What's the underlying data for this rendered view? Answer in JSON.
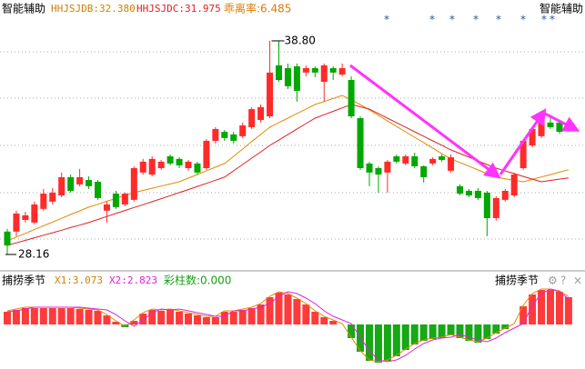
{
  "chart_data": [
    {
      "type": "candlestick",
      "title": "智能辅助",
      "title_right": "智能辅助",
      "legend": [
        "HHJSJDB:32.380",
        "HHJSJDC:31.975",
        "乖离率:6.485"
      ],
      "stars": [
        "*",
        "*",
        "*",
        "*",
        "*",
        "*",
        "*",
        "*"
      ],
      "high_mark": {
        "value": 38.8,
        "label": "38.80"
      },
      "low_mark": {
        "value": 28.16,
        "label": "28.16"
      },
      "up_color": "#ff2a2a",
      "down_color": "#00a800",
      "ylim": [
        27.48,
        39.93
      ],
      "ohlc": [
        [
          29.3,
          29.43,
          28.16,
          28.61
        ],
        [
          29.3,
          30.34,
          29.07,
          30.2
        ],
        [
          29.88,
          30.29,
          29.75,
          30.11
        ],
        [
          29.75,
          30.79,
          29.66,
          30.65
        ],
        [
          30.43,
          31.42,
          30.34,
          31.19
        ],
        [
          30.79,
          31.47,
          30.65,
          31.24
        ],
        [
          31.1,
          32.24,
          31.01,
          32.01
        ],
        [
          32.01,
          32.14,
          31.24,
          31.33
        ],
        [
          31.65,
          32.42,
          31.56,
          32.01
        ],
        [
          31.87,
          32.05,
          31.42,
          31.56
        ],
        [
          31.78,
          31.87,
          30.88,
          30.97
        ],
        [
          30.34,
          30.79,
          29.75,
          30.65
        ],
        [
          31.19,
          31.33,
          30.43,
          30.52
        ],
        [
          30.65,
          31.24,
          30.56,
          31.19
        ],
        [
          30.88,
          32.55,
          30.79,
          32.46
        ],
        [
          32.24,
          32.92,
          32.14,
          32.78
        ],
        [
          32.14,
          33.05,
          32.05,
          32.92
        ],
        [
          32.46,
          32.87,
          32.37,
          32.78
        ],
        [
          33.05,
          33.14,
          32.6,
          32.69
        ],
        [
          32.92,
          33.0,
          32.46,
          32.6
        ],
        [
          32.46,
          32.87,
          32.33,
          32.78
        ],
        [
          32.69,
          32.78,
          32.14,
          32.24
        ],
        [
          32.46,
          33.91,
          32.37,
          33.82
        ],
        [
          33.82,
          34.5,
          33.68,
          34.41
        ],
        [
          34.27,
          34.36,
          33.82,
          33.96
        ],
        [
          34.14,
          34.27,
          33.68,
          33.82
        ],
        [
          34.05,
          34.73,
          33.96,
          34.59
        ],
        [
          34.5,
          35.5,
          34.41,
          35.4
        ],
        [
          34.86,
          35.63,
          34.73,
          35.5
        ],
        [
          35.04,
          38.8,
          34.95,
          37.22
        ],
        [
          37.58,
          38.8,
          36.76,
          36.85
        ],
        [
          37.44,
          37.67,
          36.4,
          36.54
        ],
        [
          37.53,
          37.67,
          35.77,
          36.31
        ],
        [
          37.22,
          37.58,
          37.03,
          37.44
        ],
        [
          37.44,
          37.53,
          36.99,
          37.22
        ],
        [
          36.76,
          37.67,
          35.77,
          37.58
        ],
        [
          37.44,
          37.53,
          36.85,
          37.22
        ],
        [
          37.12,
          37.67,
          37.03,
          37.44
        ],
        [
          36.85,
          37.03,
          34.95,
          35.04
        ],
        [
          34.95,
          35.04,
          32.37,
          32.46
        ],
        [
          32.69,
          32.78,
          31.56,
          32.24
        ],
        [
          32.46,
          32.55,
          31.24,
          32.14
        ],
        [
          32.24,
          32.87,
          31.24,
          32.78
        ],
        [
          33.05,
          33.14,
          32.69,
          32.78
        ],
        [
          32.69,
          33.14,
          32.6,
          33.05
        ],
        [
          33.05,
          33.23,
          32.46,
          32.55
        ],
        [
          32.55,
          32.6,
          31.74,
          32.01
        ],
        [
          32.69,
          33.0,
          32.6,
          32.92
        ],
        [
          33.05,
          33.14,
          32.78,
          32.87
        ],
        [
          32.33,
          33.14,
          32.24,
          33.0
        ],
        [
          31.56,
          31.65,
          31.1,
          31.19
        ],
        [
          31.33,
          31.42,
          31.01,
          31.1
        ],
        [
          31.33,
          31.47,
          30.88,
          30.97
        ],
        [
          31.24,
          31.33,
          29.07,
          29.97
        ],
        [
          29.97,
          31.06,
          29.84,
          30.97
        ],
        [
          30.88,
          31.42,
          30.79,
          31.33
        ],
        [
          31.1,
          32.24,
          31.01,
          32.14
        ],
        [
          32.46,
          33.91,
          32.37,
          33.82
        ],
        [
          33.59,
          34.5,
          33.5,
          34.41
        ],
        [
          34.05,
          35.31,
          33.96,
          35.18
        ],
        [
          34.73,
          35.04,
          34.41,
          34.5
        ],
        [
          34.73,
          34.86,
          34.18,
          34.27
        ],
        [
          34.59,
          34.68,
          34.27,
          34.41
        ]
      ],
      "series": [
        {
          "name": "HHJSJDB",
          "color": "#e08a00",
          "values": [
            28.84,
            29.03,
            29.21,
            29.4,
            29.59,
            29.77,
            29.96,
            30.15,
            30.33,
            30.52,
            30.66,
            30.81,
            30.95,
            31.1,
            31.24,
            31.35,
            31.46,
            31.57,
            31.67,
            31.78,
            31.96,
            32.14,
            32.33,
            32.51,
            32.69,
            33.05,
            33.41,
            33.78,
            34.14,
            34.5,
            34.73,
            34.95,
            35.18,
            35.4,
            35.63,
            35.78,
            35.93,
            36.08,
            35.86,
            35.63,
            35.36,
            35.09,
            34.81,
            34.54,
            34.27,
            34.0,
            33.73,
            33.46,
            33.19,
            32.92,
            32.74,
            32.56,
            32.37,
            32.19,
            32.01,
            31.93,
            31.86,
            31.78,
            31.9,
            32.02,
            32.14,
            32.26,
            32.38
          ]
        },
        {
          "name": "HHJSJDC",
          "color": "#e02020",
          "values": [
            28.61,
            28.74,
            28.86,
            28.99,
            29.12,
            29.24,
            29.37,
            29.5,
            29.62,
            29.75,
            29.9,
            30.05,
            30.2,
            30.35,
            30.5,
            30.64,
            30.79,
            30.94,
            31.09,
            31.24,
            31.39,
            31.55,
            31.7,
            31.86,
            32.01,
            32.33,
            32.64,
            32.96,
            33.27,
            33.59,
            33.86,
            34.13,
            34.41,
            34.68,
            34.95,
            35.12,
            35.29,
            35.46,
            35.63,
            35.52,
            35.4,
            35.18,
            34.95,
            34.73,
            34.5,
            34.27,
            34.05,
            33.82,
            33.6,
            33.37,
            33.19,
            33.01,
            32.82,
            32.64,
            32.46,
            32.32,
            32.19,
            32.05,
            31.91,
            31.78,
            31.85,
            31.91,
            31.975
          ]
        }
      ]
    },
    {
      "type": "histogram-oscillator",
      "title": "捕捞季节",
      "title_right": "捕捞季节",
      "legend": [
        "X1:3.073",
        "X2:2.823",
        "彩柱数:0.000"
      ],
      "up_color": "#ff3a3a",
      "down_color": "#16a816",
      "ylim": [
        -4.7,
        5.7
      ],
      "values": [
        1.4,
        1.6,
        1.8,
        1.8,
        1.8,
        1.8,
        1.8,
        1.8,
        1.7,
        1.6,
        1.5,
        1.0,
        0.3,
        -0.3,
        0.4,
        1.2,
        1.6,
        1.5,
        1.6,
        1.4,
        1.2,
        1.0,
        0.8,
        0.8,
        1.4,
        1.4,
        1.6,
        1.8,
        2.2,
        3.0,
        3.5,
        3.3,
        2.8,
        2.2,
        1.4,
        0.8,
        0.4,
        0.0,
        -1.5,
        -3.0,
        -4.0,
        -4.2,
        -4.0,
        -3.5,
        -2.8,
        -2.2,
        -1.8,
        -1.6,
        -1.5,
        -1.2,
        -1.5,
        -1.8,
        -2.0,
        -1.6,
        -1.0,
        -0.5,
        0.0,
        2.0,
        3.3,
        3.8,
        3.8,
        3.6,
        3.0
      ],
      "series": [
        {
          "name": "X1",
          "color": "#e08a00",
          "values": [
            1.5,
            1.7,
            1.9,
            1.9,
            1.9,
            1.9,
            1.9,
            1.9,
            1.8,
            1.7,
            1.6,
            1.1,
            0.4,
            -0.2,
            0.5,
            1.3,
            1.7,
            1.6,
            1.7,
            1.5,
            1.3,
            1.1,
            0.9,
            0.9,
            1.5,
            1.5,
            1.7,
            1.9,
            2.3,
            3.1,
            3.6,
            3.4,
            2.9,
            2.3,
            1.5,
            0.9,
            0.5,
            0.1,
            -1.4,
            -2.9,
            -3.9,
            -4.1,
            -3.9,
            -3.4,
            -2.7,
            -2.1,
            -1.7,
            -1.5,
            -1.4,
            -1.1,
            -1.4,
            -1.7,
            -1.9,
            -1.5,
            -0.9,
            -0.4,
            0.1,
            2.1,
            3.4,
            3.9,
            3.9,
            3.7,
            3.073
          ]
        },
        {
          "name": "X2",
          "color": "#e020e0",
          "values": [
            1.4,
            1.5,
            1.7,
            1.9,
            1.9,
            1.9,
            1.9,
            1.9,
            1.9,
            1.8,
            1.7,
            1.6,
            1.1,
            0.4,
            -0.2,
            0.5,
            1.3,
            1.7,
            1.6,
            1.7,
            1.5,
            1.3,
            1.1,
            0.9,
            0.9,
            1.5,
            1.5,
            1.7,
            1.9,
            2.3,
            3.1,
            3.6,
            3.4,
            2.9,
            2.3,
            1.5,
            0.9,
            0.5,
            0.1,
            -1.4,
            -2.9,
            -3.9,
            -4.1,
            -3.9,
            -3.4,
            -2.7,
            -2.1,
            -1.7,
            -1.5,
            -1.4,
            -1.1,
            -1.4,
            -1.7,
            -1.9,
            -1.5,
            -0.9,
            -0.4,
            0.1,
            2.1,
            3.4,
            3.9,
            3.6,
            2.823
          ]
        }
      ]
    }
  ]
}
